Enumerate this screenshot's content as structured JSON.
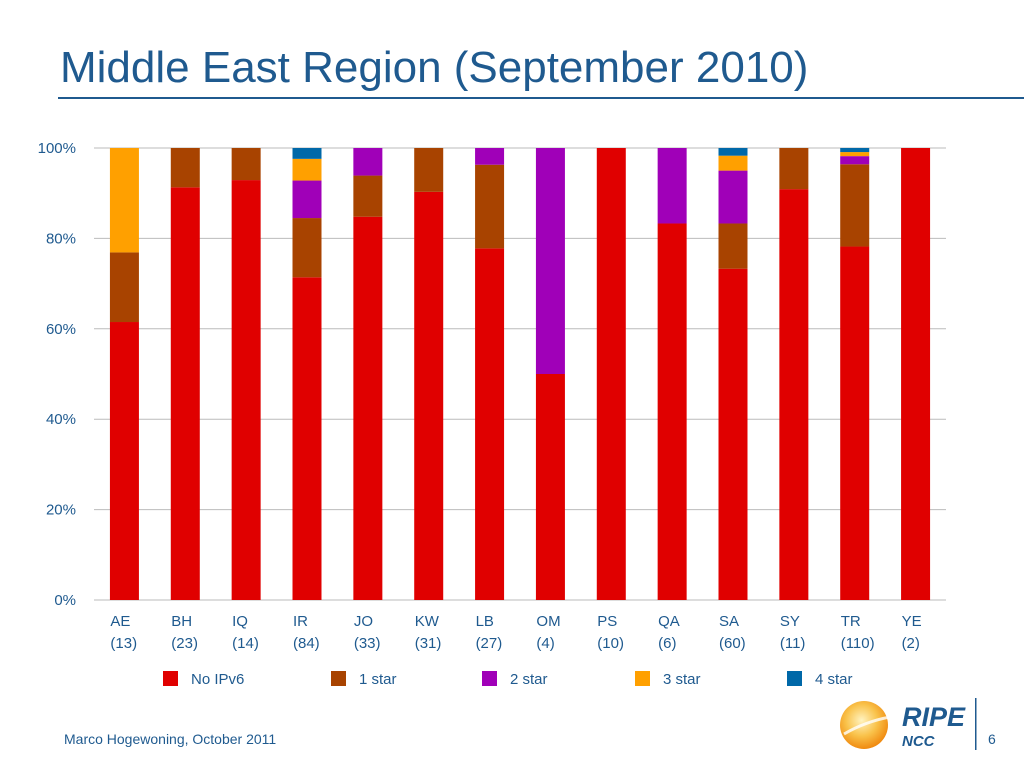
{
  "slide": {
    "title": "Middle East Region (September 2010)",
    "footer": "Marco Hogewoning, October 2011",
    "page_number": "6",
    "logo_text": "RIPE",
    "logo_subtext": "NCC"
  },
  "colors": {
    "title": "#1f5a8f",
    "rule": "#1f5a8f",
    "axis_text": "#1f5a8f",
    "grid": "#bbbbbb",
    "logo_orange": "#f7a823",
    "logo_blue": "#1f5a8f"
  },
  "chart_data": {
    "type": "bar",
    "stacked": true,
    "normalized": true,
    "categories": [
      "AE",
      "BH",
      "IQ",
      "IR",
      "JO",
      "KW",
      "LB",
      "OM",
      "PS",
      "QA",
      "SA",
      "SY",
      "TR",
      "YE"
    ],
    "category_counts": [
      "(13)",
      "(23)",
      "(14)",
      "(84)",
      "(33)",
      "(31)",
      "(27)",
      "(4)",
      "(10)",
      "(6)",
      "(60)",
      "(11)",
      "(110)",
      "(2)"
    ],
    "series": [
      {
        "name": "No IPv6",
        "color": "#e00000",
        "values": [
          61.5,
          91.3,
          92.9,
          71.4,
          84.8,
          90.3,
          77.8,
          50.0,
          100.0,
          83.3,
          73.3,
          90.9,
          78.2,
          100.0
        ]
      },
      {
        "name": "1 star",
        "color": "#a84300",
        "values": [
          15.4,
          8.7,
          7.1,
          13.1,
          9.1,
          9.7,
          18.5,
          0.0,
          0.0,
          0.0,
          10.0,
          9.1,
          18.2,
          0.0
        ]
      },
      {
        "name": "2 star",
        "color": "#a000b8",
        "values": [
          0.0,
          0.0,
          0.0,
          8.3,
          6.1,
          0.0,
          3.7,
          50.0,
          0.0,
          16.7,
          11.7,
          0.0,
          1.8,
          0.0
        ]
      },
      {
        "name": "3 star",
        "color": "#ffa000",
        "values": [
          23.1,
          0.0,
          0.0,
          4.8,
          0.0,
          0.0,
          0.0,
          0.0,
          0.0,
          0.0,
          3.3,
          0.0,
          0.9,
          0.0
        ]
      },
      {
        "name": "4 star",
        "color": "#0068a8",
        "values": [
          0.0,
          0.0,
          0.0,
          2.4,
          0.0,
          0.0,
          0.0,
          0.0,
          0.0,
          0.0,
          1.7,
          0.0,
          0.9,
          0.0
        ]
      }
    ],
    "ylim": [
      0,
      100
    ],
    "yticks": [
      "0%",
      "20%",
      "40%",
      "60%",
      "80%",
      "100%"
    ],
    "grid": true,
    "legend_position": "bottom"
  }
}
